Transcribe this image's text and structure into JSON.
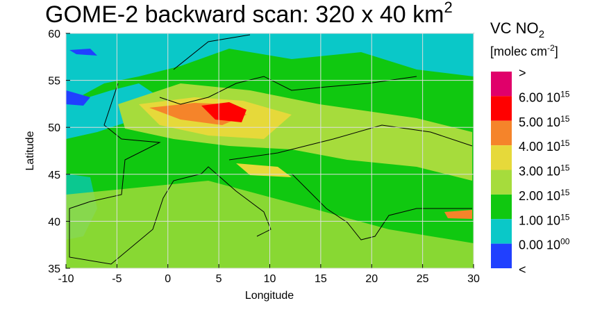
{
  "title": {
    "text": "GOME-2 backward scan: 320 x 40 km",
    "sup": "2"
  },
  "axes": {
    "xlabel": "Longitude",
    "ylabel": "Latitude",
    "xlim": [
      -10,
      30
    ],
    "ylim": [
      35,
      60
    ],
    "xticks": [
      -10,
      -5,
      0,
      5,
      10,
      15,
      20,
      25,
      30
    ],
    "yticks": [
      35,
      40,
      45,
      50,
      55,
      60
    ]
  },
  "colorbar": {
    "title": {
      "text": "VC NO",
      "sub": "2"
    },
    "unit": {
      "text": "[molec cm",
      "sup": "-2",
      "end": "]"
    },
    "colors": [
      "#e0006a",
      "#ff0000",
      "#f5842a",
      "#e6d93a",
      "#a6dc3c",
      "#10c810",
      "#0ac8c8",
      "#2040ff"
    ],
    "labels": [
      {
        "base": ">"
      },
      {
        "base": "6.00 10",
        "exp": "15"
      },
      {
        "base": "5.00 10",
        "exp": "15"
      },
      {
        "base": "4.00 10",
        "exp": "15"
      },
      {
        "base": "3.00 10",
        "exp": "15"
      },
      {
        "base": "2.00 10",
        "exp": "15"
      },
      {
        "base": "1.00 10",
        "exp": "15"
      },
      {
        "base": "0.00 10",
        "exp": "00"
      },
      {
        "base": "<"
      }
    ]
  }
}
